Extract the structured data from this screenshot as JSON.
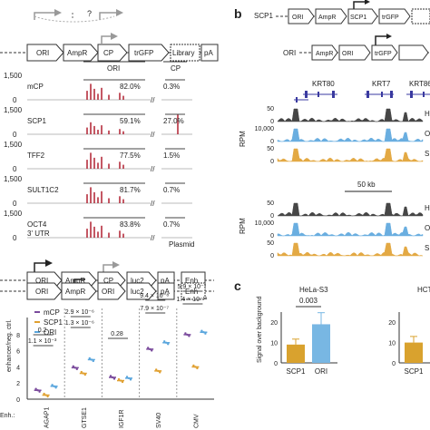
{
  "panels": {
    "b_label": "b",
    "c_label": "c"
  },
  "constructs": {
    "top": [
      "ORI",
      "AmpR",
      "CP",
      "trGFP",
      "Library",
      "pA"
    ],
    "b1": [
      "SCP1",
      "ORI",
      "AmpR",
      "SCP1",
      "trGFP"
    ],
    "b2": [
      "ORI",
      "AmpR",
      "ORI",
      "trGFP"
    ],
    "luc": [
      "ORI",
      "AmpR",
      "CP",
      "luc2",
      "pA",
      "Enh"
    ],
    "luc2": [
      "ORI",
      "AmpR",
      "ORI",
      "luc2",
      "pA",
      "Enh"
    ]
  },
  "tracks": {
    "col_ori": "ORI",
    "col_cp": "CP",
    "plasmid": "Plasmid",
    "rows": [
      {
        "name": "mCP",
        "y0": "1,500",
        "yb": "0",
        "ori_pct": "82.0%",
        "cp_pct": "0.3%"
      },
      {
        "name": "SCP1",
        "y0": "1,500",
        "yb": "0",
        "ori_pct": "59.1%",
        "cp_pct": "27.0%"
      },
      {
        "name": "TFF2",
        "y0": "1,500",
        "yb": "0",
        "ori_pct": "77.5%",
        "cp_pct": "1.5%"
      },
      {
        "name": "SULT1C2",
        "y0": "1,500",
        "yb": "0",
        "ori_pct": "81.7%",
        "cp_pct": "0.7%"
      },
      {
        "name": "OCT4",
        "name2": "3' UTR",
        "y0": "1,500",
        "yb": "0",
        "ori_pct": "83.8%",
        "cp_pct": "0.7%"
      }
    ]
  },
  "genome": {
    "genes": [
      "KRT80",
      "KRT7",
      "KRT86"
    ],
    "rpm": "RPM",
    "scale": "50 kb",
    "upper_ticks": [
      "50",
      "0",
      "10,000",
      "0",
      "50",
      "0"
    ],
    "lower_ticks": [
      "50",
      "0",
      "10,000",
      "0",
      "50",
      "0"
    ],
    "right_labels": [
      "H",
      "O",
      "S",
      "H",
      "O",
      "S"
    ]
  },
  "legend": {
    "items": [
      {
        "name": "mCP",
        "color": "#7a4a9c"
      },
      {
        "name": "SCP1",
        "color": "#e0a030"
      },
      {
        "name": "ORI",
        "color": "#5aa6dd"
      }
    ]
  },
  "dotplot": {
    "ylabel": "enhancer/neg. ctrl.",
    "yticks": [
      "8",
      "6",
      "4",
      "2",
      "0"
    ],
    "enh_label": "Enh.:",
    "groups": [
      "AGAP1",
      "GTSE1",
      "IGF1R",
      "SV40",
      "CMV"
    ],
    "annotations": [
      {
        "text": "0.2",
        "group": 0,
        "level": "upper"
      },
      {
        "text": "1.1 × 10⁻³",
        "group": 0,
        "level": "lower"
      },
      {
        "text": "2.9 × 10⁻⁶",
        "group": 1,
        "level": "upper"
      },
      {
        "text": "1.3 × 10⁻⁶",
        "group": 1,
        "level": "lower"
      },
      {
        "text": "0.28",
        "group": 2,
        "level": "lower"
      },
      {
        "text": "9.4 × 10⁻⁸",
        "group": 3,
        "level": "upper"
      },
      {
        "text": "7.9 × 10⁻⁷",
        "group": 3,
        "level": "lower"
      },
      {
        "text": "5.9 × 10⁻⁷",
        "group": 4,
        "level": "upper"
      },
      {
        "text": "1.4 × 10⁻¹¹",
        "group": 4,
        "level": "lower"
      }
    ]
  },
  "chart_data": [
    {
      "type": "scatter",
      "ylabel": "enhancer/neg. ctrl.",
      "categories": [
        "AGAP1",
        "GTSE1",
        "IGF1R",
        "SV40",
        "CMV"
      ],
      "ylim": [
        0,
        9
      ],
      "series": [
        {
          "name": "mCP",
          "values": [
            1.1,
            3.9,
            2.7,
            6.2,
            8.0
          ]
        },
        {
          "name": "SCP1",
          "values": [
            0.5,
            3.2,
            2.3,
            3.5,
            4.0
          ]
        },
        {
          "name": "ORI",
          "values": [
            1.6,
            4.9,
            2.6,
            7.0,
            8.3
          ]
        }
      ]
    },
    {
      "type": "bar",
      "title": "HeLa-S3",
      "ylabel": "Signal over background",
      "categories": [
        "SCP1",
        "ORI"
      ],
      "values": [
        9,
        19
      ],
      "ylim": [
        0,
        25
      ],
      "yticks": [
        "20",
        "10",
        "0"
      ],
      "pvalue": "0.003",
      "colors": [
        "#d9a22e",
        "#78b7e3"
      ]
    },
    {
      "type": "bar",
      "title": "HCT-",
      "categories": [
        "SCP1"
      ],
      "values": [
        10
      ],
      "ylim": [
        0,
        25
      ],
      "yticks": [
        "20",
        "10",
        "0"
      ],
      "colors": [
        "#d9a22e"
      ]
    }
  ]
}
